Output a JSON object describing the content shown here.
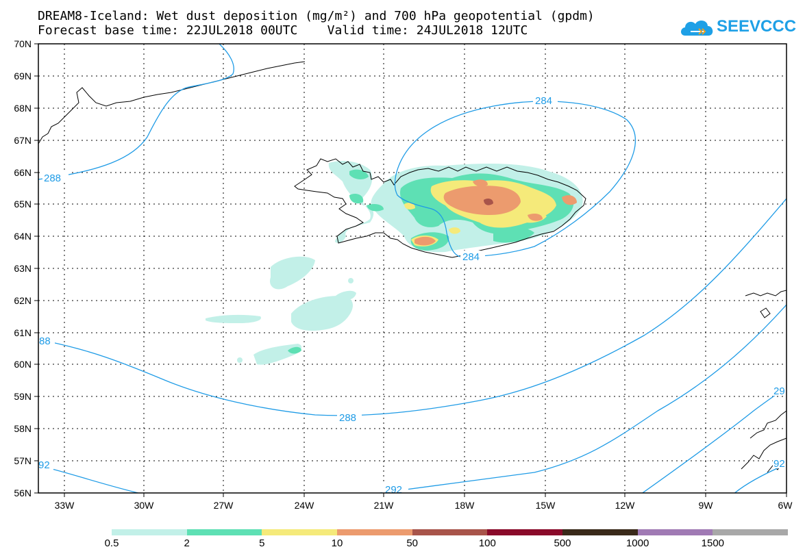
{
  "header": {
    "title_line1": "DREAM8-Iceland: Wet dust deposition (mg/m²) and 700 hPa geopotential (gpdm)",
    "base_time_label": "Forecast base time:",
    "base_time": "22JUL2018 00UTC",
    "valid_time_label": "Valid time:",
    "valid_time": "24JUL2018 12UTC"
  },
  "logo": {
    "text": "SEEVCCC",
    "color": "#1ea0e6"
  },
  "map": {
    "lat_ticks": [
      "70N",
      "69N",
      "68N",
      "67N",
      "66N",
      "65N",
      "64N",
      "63N",
      "62N",
      "61N",
      "60N",
      "59N",
      "58N",
      "57N",
      "56N"
    ],
    "lon_ticks": [
      "33W",
      "30W",
      "27W",
      "24W",
      "21W",
      "18W",
      "15W",
      "12W",
      "9W",
      "6W"
    ],
    "contour_labels": {
      "c284_top": "284",
      "c284_bottom": "284",
      "c288_top": "288",
      "c288_left": "88",
      "c288_mid": "288",
      "c292_left": "92",
      "c292_bottom": "292",
      "c292_right": "29",
      "c292_right2": "92"
    },
    "contour_color": "#1e9be6",
    "coast_color": "#000000"
  },
  "colorbar": {
    "colors": [
      "#c2f0e8",
      "#5ee0b4",
      "#f5ea7a",
      "#ec9b6e",
      "#a8544a",
      "#8a0a2a",
      "#3a2a1a",
      "#a07ab4",
      "#a8a8a8"
    ],
    "labels": [
      "0.5",
      "2",
      "5",
      "10",
      "50",
      "100",
      "500",
      "1000",
      "1500"
    ]
  }
}
